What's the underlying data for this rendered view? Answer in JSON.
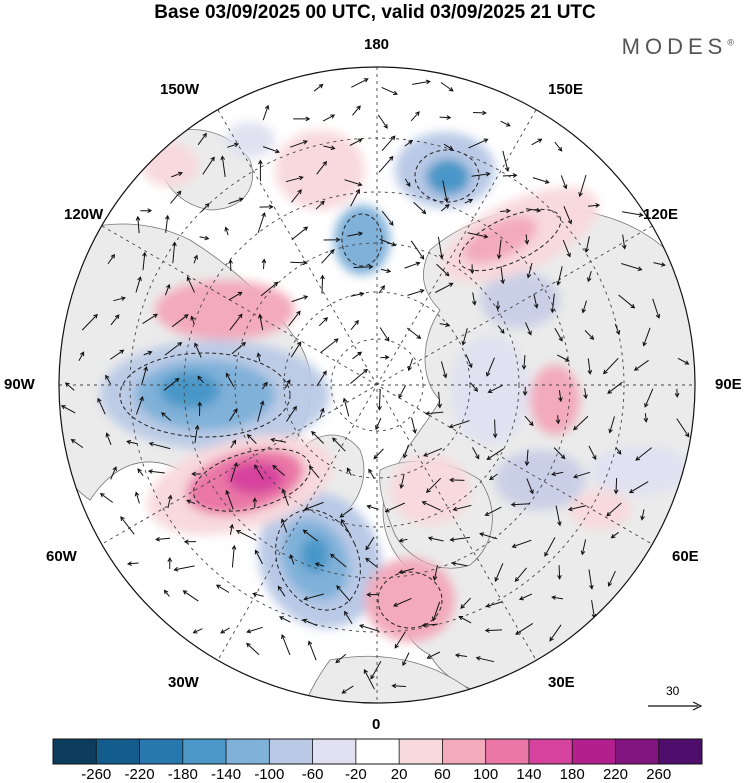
{
  "title": "Base 03/09/2025 00 UTC, valid 03/09/2025 21 UTC",
  "brand": "MODES",
  "brand_mark": "®",
  "map": {
    "projection": "north-polar-stereographic",
    "longitude_labels": {
      "top": "180",
      "bottom": "0",
      "left": "90W",
      "right": "90E",
      "upper_left_1": "150W",
      "upper_left_2": "120W",
      "upper_right_1": "150E",
      "upper_right_2": "120E",
      "lower_left_1": "60W",
      "lower_left_2": "30W",
      "lower_right_1": "60E",
      "lower_right_2": "30E"
    },
    "reference_vector_label": "30"
  },
  "colorbar": {
    "labels": [
      "-260",
      "-220",
      "-180",
      "-140",
      "-100",
      "-60",
      "-20",
      "20",
      "60",
      "100",
      "140",
      "180",
      "220",
      "260"
    ],
    "colors": [
      "#0c3c5e",
      "#125d8c",
      "#2878b0",
      "#4a97c8",
      "#7fb1d9",
      "#b9c9e6",
      "#e1e1f1",
      "#ffffff",
      "#f8d9dd",
      "#f3aabb",
      "#ea77a6",
      "#d6439e",
      "#b41f8e",
      "#821680",
      "#4e0e6c"
    ]
  }
}
